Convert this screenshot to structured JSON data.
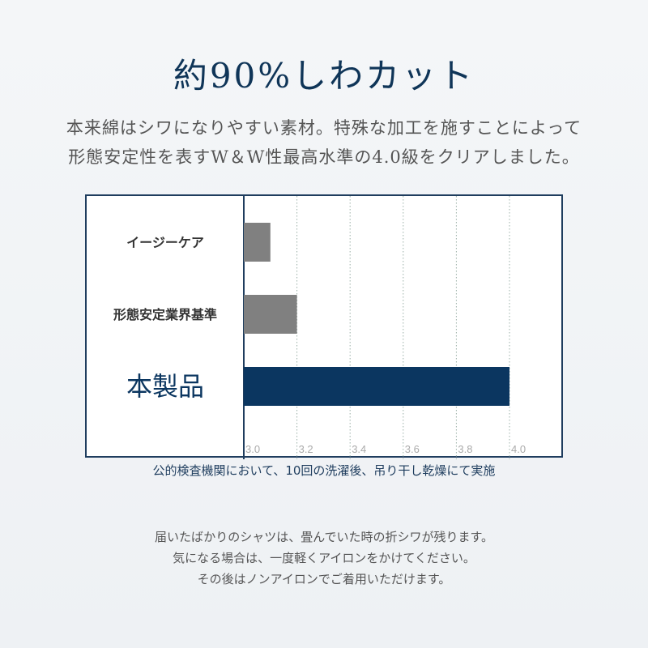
{
  "title": "約90%しわカット",
  "lead": [
    "本来綿はシワになりやすい素材。特殊な加工を施すことによって",
    "形態安定性を表すW＆W性最高水準の4.0級をクリアしました。"
  ],
  "chart_data": {
    "type": "bar",
    "orientation": "horizontal",
    "categories": [
      "イージーケア",
      "形態安定業界基準",
      "本製品"
    ],
    "values": [
      3.1,
      3.2,
      4.0
    ],
    "colors": [
      "#808080",
      "#808080",
      "#0b3660"
    ],
    "xlim": [
      3.0,
      4.0
    ],
    "ticks": [
      "3.0",
      "3.2",
      "3.4",
      "3.6",
      "3.8",
      "4.0"
    ],
    "grid": true
  },
  "note": "公的検査機関において、10回の洗濯後、吊り干し乾燥にて実施",
  "footer": [
    "届いたばかりのシャツは、畳んでいた時の折シワが残ります。",
    "気になる場合は、一度軽くアイロンをかけてください。",
    "その後はノンアイロンでご着用いただけます。"
  ]
}
